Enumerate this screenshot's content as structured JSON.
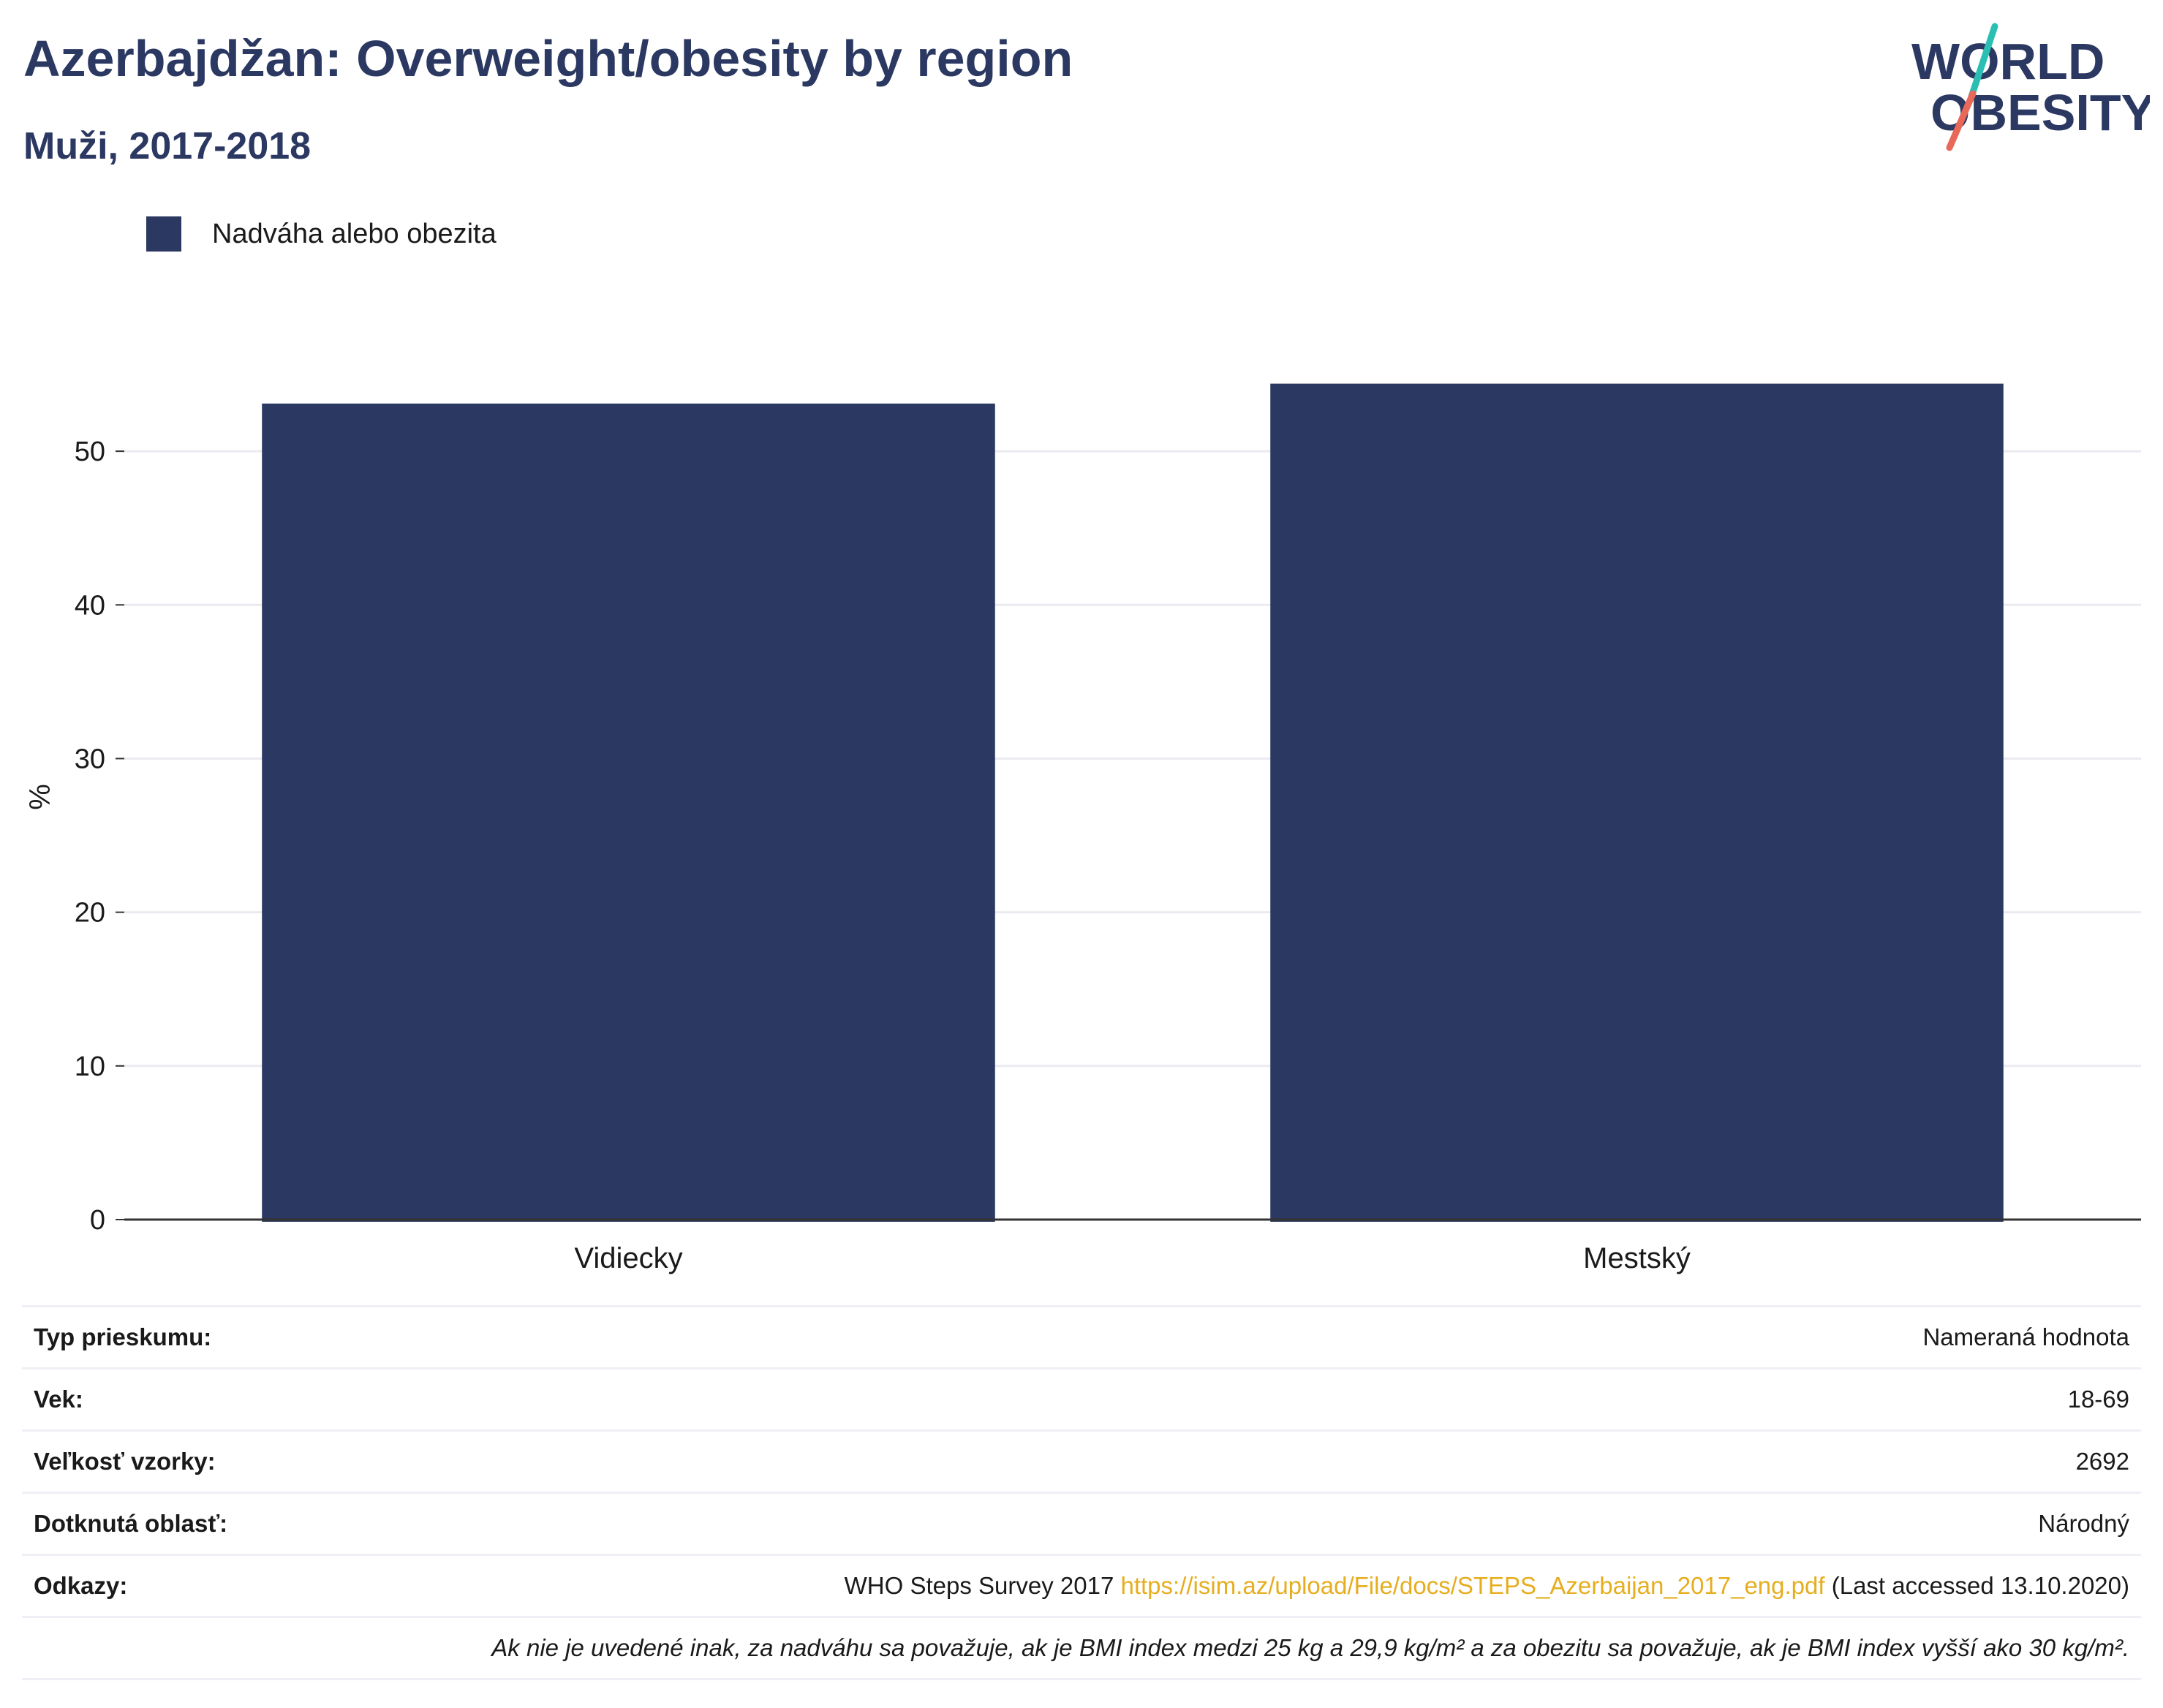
{
  "header": {
    "title": "Azerbajdžan: Overweight/obesity by region",
    "subtitle": "Muži, 2017-2018"
  },
  "logo": {
    "line1": "WORLD",
    "line2": "OBESITY",
    "colors": {
      "text": "#2b3862",
      "slash_top": "#2bbfb3",
      "slash_bottom": "#e8685a"
    }
  },
  "colors": {
    "bar": "#2b3862",
    "grid": "#e9ebf1",
    "axis": "#333333"
  },
  "chart_data": {
    "type": "bar",
    "categories": [
      "Vidiecky",
      "Mestský"
    ],
    "series": [
      {
        "name": "Nadváha alebo obezita",
        "values": [
          53.1,
          54.4
        ]
      }
    ],
    "xlabel": "",
    "ylabel": "%",
    "ylim": [
      0,
      57
    ],
    "yticks": [
      0,
      10,
      20,
      30,
      40,
      50
    ],
    "grid": true,
    "legend_position": "top-left"
  },
  "info": {
    "survey_type": {
      "label": "Typ prieskumu:",
      "value": "Nameraná hodnota"
    },
    "age": {
      "label": "Vek:",
      "value": "18-69"
    },
    "sample_size": {
      "label": "Veľkosť vzorky:",
      "value": "2692"
    },
    "area": {
      "label": "Dotknutá oblasť:",
      "value": "Národný"
    },
    "references": {
      "label": "Odkazy:",
      "prefix": "WHO Steps Survey 2017",
      "url": "https://isim.az/upload/File/docs/STEPS_Azerbaijan_2017_eng.pdf",
      "suffix": "(Last accessed 13.10.2020)"
    },
    "note": "Ak nie je uvedené inak, za nadváhu sa považuje, ak je BMI index medzi 25 kg a 29,9 kg/m² a za obezitu sa považuje, ak je BMI index vyšší ako 30 kg/m²."
  }
}
